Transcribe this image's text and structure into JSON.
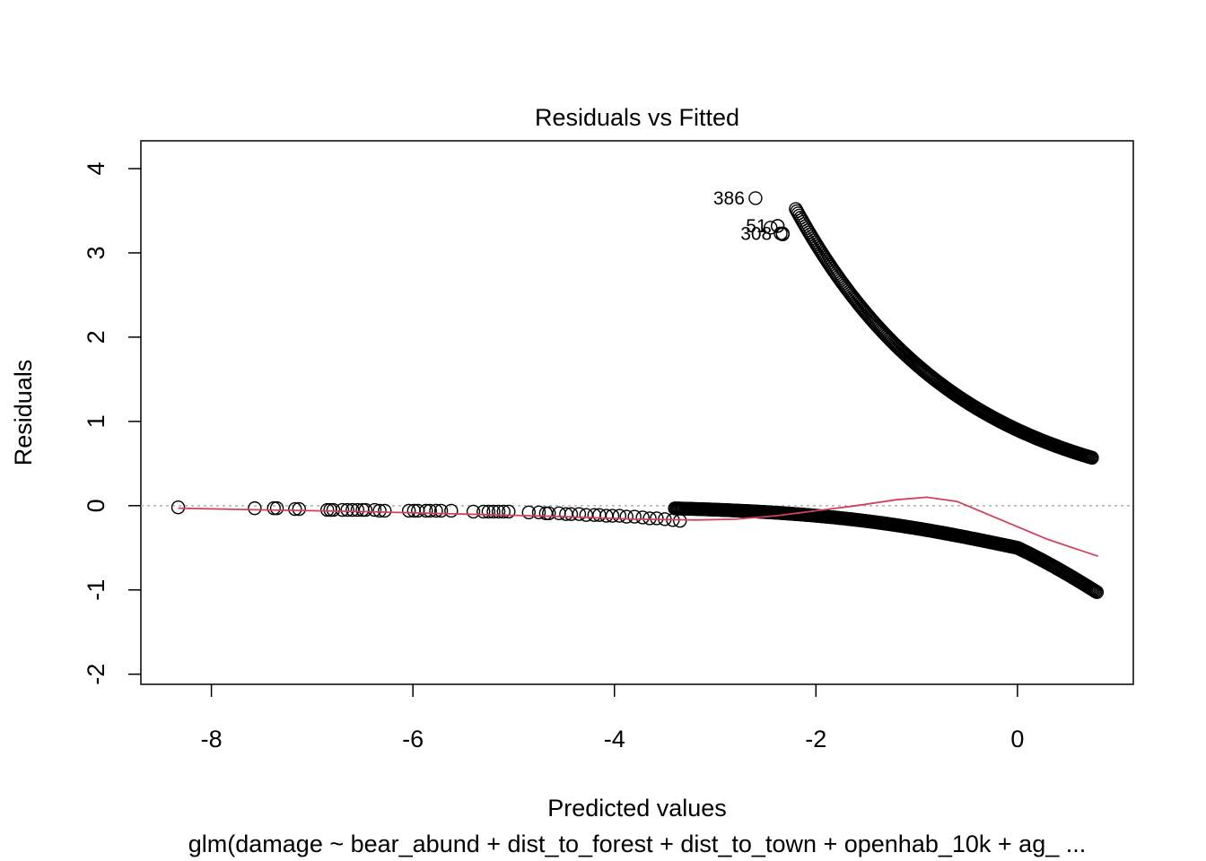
{
  "chart_data": {
    "type": "scatter",
    "title": "Residuals vs Fitted",
    "xlabel": "Predicted values",
    "ylabel": "Residuals",
    "subtitle": "glm(damage ~ bear_abund + dist_to_forest + dist_to_town + openhab_10k + ag_ ...",
    "xlim": [
      -8.7,
      1.15
    ],
    "ylim": [
      -2.12,
      4.33
    ],
    "x_ticks": [
      -8,
      -6,
      -4,
      -2,
      0
    ],
    "y_ticks": [
      -2,
      -1,
      0,
      1,
      2,
      3,
      4
    ],
    "x_tick_labels": [
      "-8",
      "-6",
      "-4",
      "-2",
      "0"
    ],
    "y_tick_labels": [
      "-2",
      "-1",
      "0",
      "1",
      "2",
      "3",
      "4"
    ],
    "reference_line": {
      "y": 0,
      "style": "dotted",
      "color": "#b0b0b0"
    },
    "point_style": {
      "shape": "open-circle",
      "color": "#000000"
    },
    "series": [
      {
        "points_zero_group": [
          [
            -8.33,
            -0.02
          ],
          [
            -7.57,
            -0.03
          ],
          [
            -7.38,
            -0.03
          ],
          [
            -7.35,
            -0.03
          ],
          [
            -7.17,
            -0.04
          ],
          [
            -7.13,
            -0.04
          ],
          [
            -6.85,
            -0.05
          ],
          [
            -6.82,
            -0.05
          ],
          [
            -6.79,
            -0.05
          ],
          [
            -6.7,
            -0.05
          ],
          [
            -6.65,
            -0.05
          ],
          [
            -6.6,
            -0.05
          ],
          [
            -6.55,
            -0.05
          ],
          [
            -6.5,
            -0.05
          ],
          [
            -6.47,
            -0.05
          ],
          [
            -6.38,
            -0.05
          ],
          [
            -6.33,
            -0.06
          ],
          [
            -6.28,
            -0.06
          ],
          [
            -6.04,
            -0.06
          ],
          [
            -5.99,
            -0.06
          ],
          [
            -5.95,
            -0.06
          ],
          [
            -5.87,
            -0.06
          ],
          [
            -5.83,
            -0.06
          ],
          [
            -5.77,
            -0.06
          ],
          [
            -5.72,
            -0.06
          ],
          [
            -5.62,
            -0.06
          ],
          [
            -5.4,
            -0.07
          ],
          [
            -5.3,
            -0.07
          ],
          [
            -5.25,
            -0.07
          ],
          [
            -5.2,
            -0.07
          ],
          [
            -5.15,
            -0.07
          ],
          [
            -5.1,
            -0.07
          ],
          [
            -5.05,
            -0.07
          ],
          [
            -4.85,
            -0.08
          ],
          [
            -4.75,
            -0.08
          ],
          [
            -4.68,
            -0.09
          ],
          [
            -4.65,
            -0.09
          ],
          [
            -4.55,
            -0.09
          ],
          [
            -4.48,
            -0.1
          ],
          [
            -4.43,
            -0.1
          ],
          [
            -4.35,
            -0.1
          ],
          [
            -4.28,
            -0.11
          ],
          [
            -4.2,
            -0.11
          ],
          [
            -4.15,
            -0.11
          ],
          [
            -4.08,
            -0.12
          ],
          [
            -4.02,
            -0.12
          ],
          [
            -3.95,
            -0.12
          ],
          [
            -3.88,
            -0.13
          ],
          [
            -3.8,
            -0.13
          ],
          [
            -3.72,
            -0.14
          ],
          [
            -3.65,
            -0.15
          ],
          [
            -3.58,
            -0.15
          ],
          [
            -3.5,
            -0.16
          ],
          [
            -3.42,
            -0.17
          ],
          [
            -3.35,
            -0.18
          ]
        ],
        "lower_curve": {
          "x_from": -3.4,
          "x_to": 0.8,
          "equation": "-1/(1+exp(-x))"
        },
        "upper_curve": {
          "x_from": -2.2,
          "x_to": 0.75,
          "equation": "1/(1+exp(x))+0.0"
        },
        "upper_extra": [
          [
            -2.35,
            3.23
          ],
          [
            -2.33,
            3.22
          ],
          [
            -2.45,
            3.3
          ],
          [
            -2.38,
            3.32
          ]
        ]
      }
    ],
    "labeled_points": [
      {
        "label": "386",
        "x": -2.6,
        "y": 3.65
      },
      {
        "label": "51",
        "x": -2.38,
        "y": 3.32
      },
      {
        "label": "308",
        "x": -2.33,
        "y": 3.23
      }
    ],
    "smooth_line": {
      "color": "#d1415e",
      "points": [
        [
          -8.33,
          -0.03
        ],
        [
          -7.5,
          -0.05
        ],
        [
          -6.5,
          -0.07
        ],
        [
          -5.5,
          -0.1
        ],
        [
          -4.5,
          -0.13
        ],
        [
          -3.8,
          -0.16
        ],
        [
          -3.2,
          -0.17
        ],
        [
          -2.8,
          -0.16
        ],
        [
          -2.4,
          -0.12
        ],
        [
          -2.0,
          -0.06
        ],
        [
          -1.6,
          0.0
        ],
        [
          -1.2,
          0.07
        ],
        [
          -0.9,
          0.1
        ],
        [
          -0.6,
          0.05
        ],
        [
          -0.3,
          -0.1
        ],
        [
          0.0,
          -0.25
        ],
        [
          0.3,
          -0.4
        ],
        [
          0.6,
          -0.52
        ],
        [
          0.8,
          -0.6
        ]
      ]
    }
  }
}
